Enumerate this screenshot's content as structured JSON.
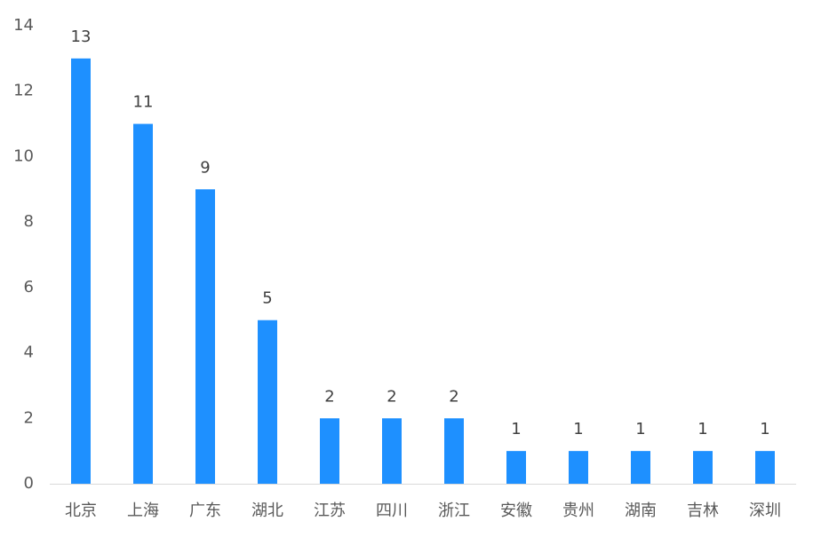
{
  "chart_data": {
    "type": "bar",
    "categories": [
      "北京",
      "上海",
      "广东",
      "湖北",
      "江苏",
      "四川",
      "浙江",
      "安徽",
      "贵州",
      "湖南",
      "吉林",
      "深圳"
    ],
    "values": [
      13,
      11,
      9,
      5,
      2,
      2,
      2,
      1,
      1,
      1,
      1,
      1
    ],
    "color": "#1e90ff",
    "ylim": [
      0,
      14
    ],
    "yticks": [
      0,
      2,
      4,
      6,
      8,
      10,
      12,
      14
    ],
    "grid": false
  }
}
